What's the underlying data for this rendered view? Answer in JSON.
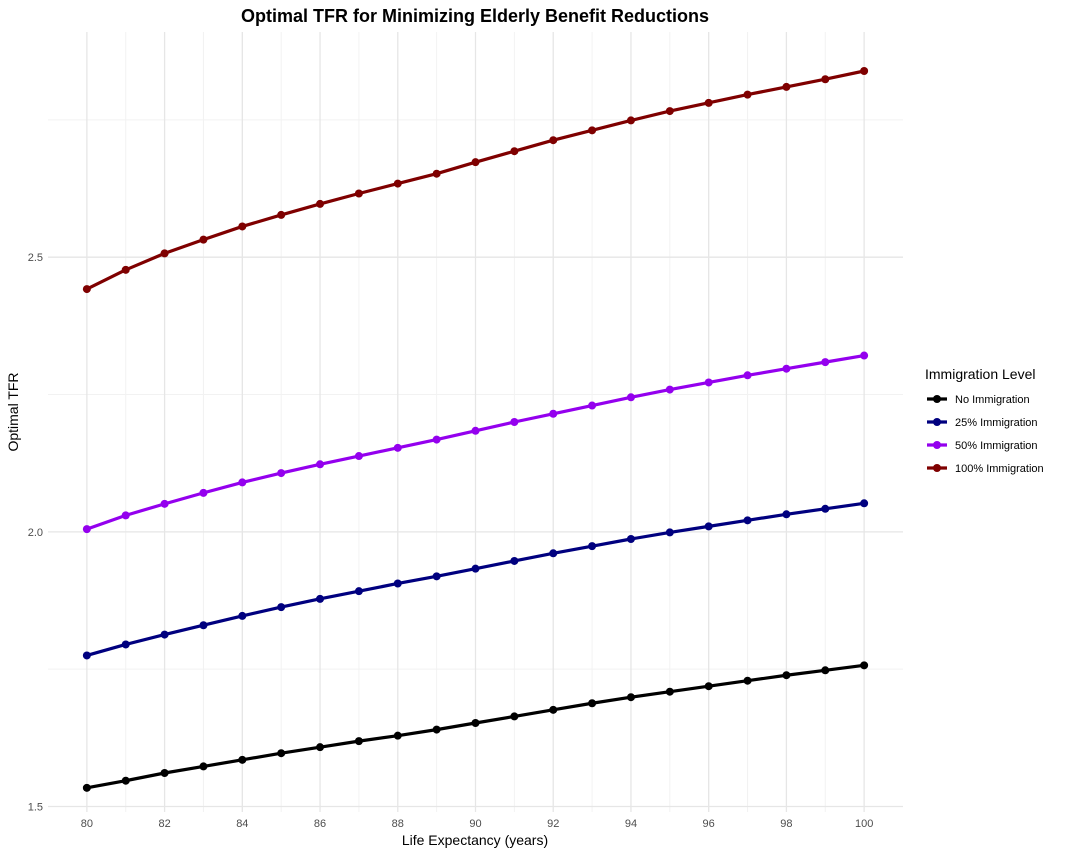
{
  "chart_data": {
    "type": "line",
    "title": "Optimal TFR for Minimizing Elderly Benefit Reductions",
    "xlabel": "Life Expectancy (years)",
    "ylabel": "Optimal TFR",
    "x": [
      80,
      81,
      82,
      83,
      84,
      85,
      86,
      87,
      88,
      89,
      90,
      91,
      92,
      93,
      94,
      95,
      96,
      97,
      98,
      99,
      100
    ],
    "xticks": [
      80,
      82,
      84,
      86,
      88,
      90,
      92,
      94,
      96,
      98,
      100
    ],
    "yticks": [
      1.5,
      2.0,
      2.5
    ],
    "xlim": [
      79.0,
      101.0
    ],
    "ylim": [
      1.49,
      2.91
    ],
    "grid": true,
    "legend": {
      "title": "Immigration Level",
      "placement": "right"
    },
    "series": [
      {
        "name": "No Immigration",
        "color": "#000000",
        "values": [
          1.534,
          1.547,
          1.561,
          1.573,
          1.585,
          1.597,
          1.608,
          1.619,
          1.629,
          1.64,
          1.652,
          1.664,
          1.676,
          1.688,
          1.699,
          1.709,
          1.719,
          1.729,
          1.739,
          1.748,
          1.757
        ]
      },
      {
        "name": "25% Immigration",
        "color": "#00007f",
        "values": [
          1.775,
          1.795,
          1.813,
          1.83,
          1.847,
          1.863,
          1.878,
          1.892,
          1.906,
          1.919,
          1.933,
          1.947,
          1.961,
          1.974,
          1.987,
          1.999,
          2.01,
          2.021,
          2.032,
          2.042,
          2.052
        ]
      },
      {
        "name": "50% Immigration",
        "color": "#9400ee",
        "values": [
          2.005,
          2.03,
          2.051,
          2.071,
          2.09,
          2.107,
          2.123,
          2.138,
          2.153,
          2.168,
          2.184,
          2.2,
          2.215,
          2.23,
          2.245,
          2.259,
          2.272,
          2.285,
          2.297,
          2.309,
          2.321
        ]
      },
      {
        "name": "100% Immigration",
        "color": "#7f0000",
        "values": [
          2.442,
          2.477,
          2.507,
          2.532,
          2.556,
          2.577,
          2.597,
          2.616,
          2.634,
          2.652,
          2.673,
          2.693,
          2.713,
          2.731,
          2.749,
          2.766,
          2.781,
          2.796,
          2.81,
          2.824,
          2.839
        ]
      }
    ]
  }
}
